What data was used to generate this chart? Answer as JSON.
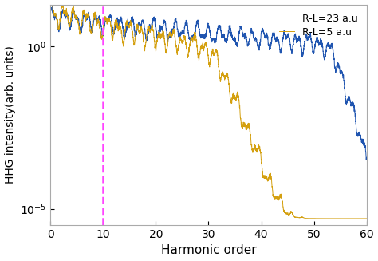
{
  "xlabel": "Harmonic order",
  "ylabel": "HHG intensity(arb. units)",
  "xlim": [
    0,
    60
  ],
  "ylim_log": [
    -5.5,
    1.3
  ],
  "dashed_x": 10,
  "dashed_color": "#FF44FF",
  "blue_color": "#2055B0",
  "gold_color": "#D4A010",
  "legend_labels": [
    "R-L=23 a.u",
    "R-L=5 a.u"
  ],
  "background_color": "#ffffff",
  "yticks": [
    1e-05,
    1.0
  ],
  "ytick_labels": [
    "$10^{-5}$",
    "$10^{0}$"
  ]
}
